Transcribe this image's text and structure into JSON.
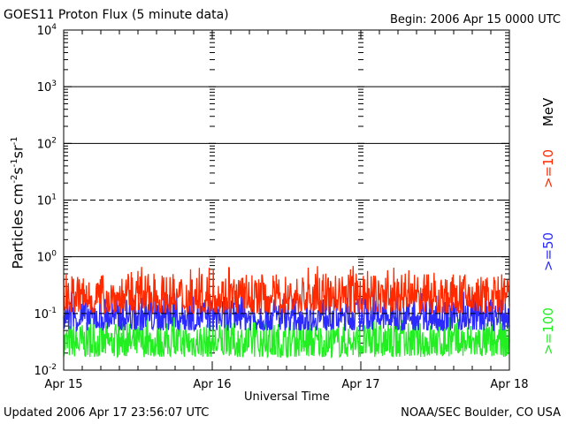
{
  "header": {
    "title": "GOES11 Proton Flux (5 minute data)",
    "begin": "Begin: 2006 Apr 15 0000 UTC"
  },
  "footer": {
    "updated": "Updated 2006 Apr 17 23:56:07 UTC",
    "source": "NOAA/SEC Boulder, CO USA"
  },
  "chart_data": {
    "type": "line",
    "title": "GOES11 Proton Flux (5 minute data)",
    "xlabel": "Universal Time",
    "ylabel": "Particles cm-2s-1sr-1",
    "y_scale": "log",
    "ylim": [
      0.01,
      10000
    ],
    "y_tick_labels": [
      "10-2",
      "10-1",
      "100",
      "101",
      "102",
      "103",
      "104"
    ],
    "x_tick_labels": [
      "Apr 15",
      "Apr 16",
      "Apr 17",
      "Apr 18"
    ],
    "x_range_days": [
      0,
      3
    ],
    "grid": "horizontal lines at each decade (dashed at 10^1 and 10^-1), vertical ticks at day boundaries",
    "legend_placement": "right, vertical",
    "units_label": "MeV",
    "series": [
      {
        "name": ">=10",
        "color": "#ff2a00",
        "typical_range": [
          0.1,
          0.5
        ],
        "peak": 0.7
      },
      {
        "name": ">=50",
        "color": "#2a2aff",
        "typical_range": [
          0.05,
          0.2
        ],
        "peak": 0.25
      },
      {
        "name": ">=100",
        "color": "#22ee22",
        "typical_range": [
          0.017,
          0.07
        ],
        "peak": 0.09
      }
    ]
  }
}
